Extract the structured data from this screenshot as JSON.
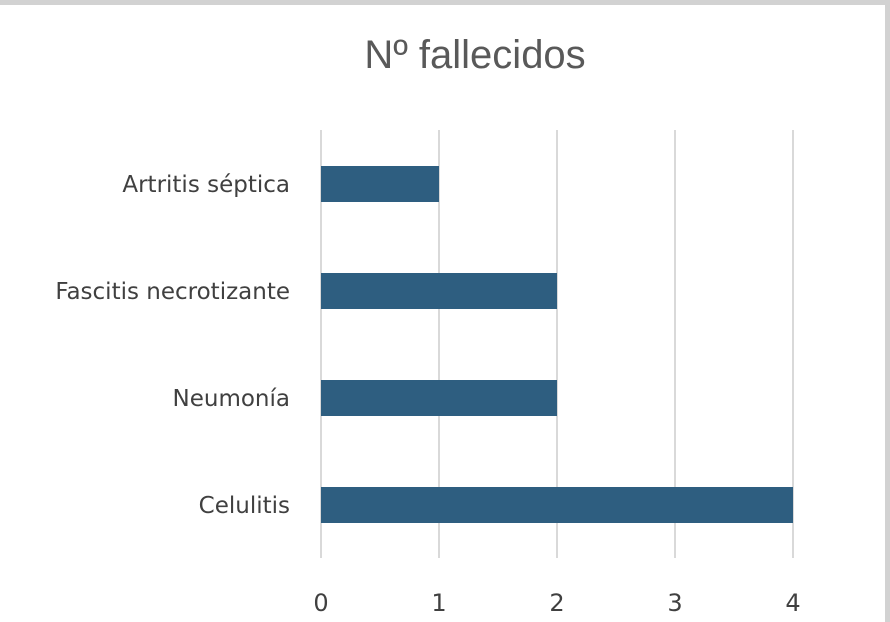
{
  "chart_data": {
    "type": "bar",
    "orientation": "horizontal",
    "title": "Nº fallecidos",
    "categories": [
      "Artritis séptica",
      "Fascitis necrotizante",
      "Neumonía",
      "Celulitis"
    ],
    "series": [
      {
        "values": [
          1,
          2,
          2,
          4
        ]
      }
    ],
    "xlim": [
      0,
      4
    ],
    "xticks": [
      "0",
      "1",
      "2",
      "3",
      "4"
    ],
    "grid": "vertical",
    "legend": "none",
    "colors": {
      "bar": "#2e5e80",
      "grid": "#d9d9d9",
      "title": "#595959",
      "label": "#404040"
    }
  }
}
